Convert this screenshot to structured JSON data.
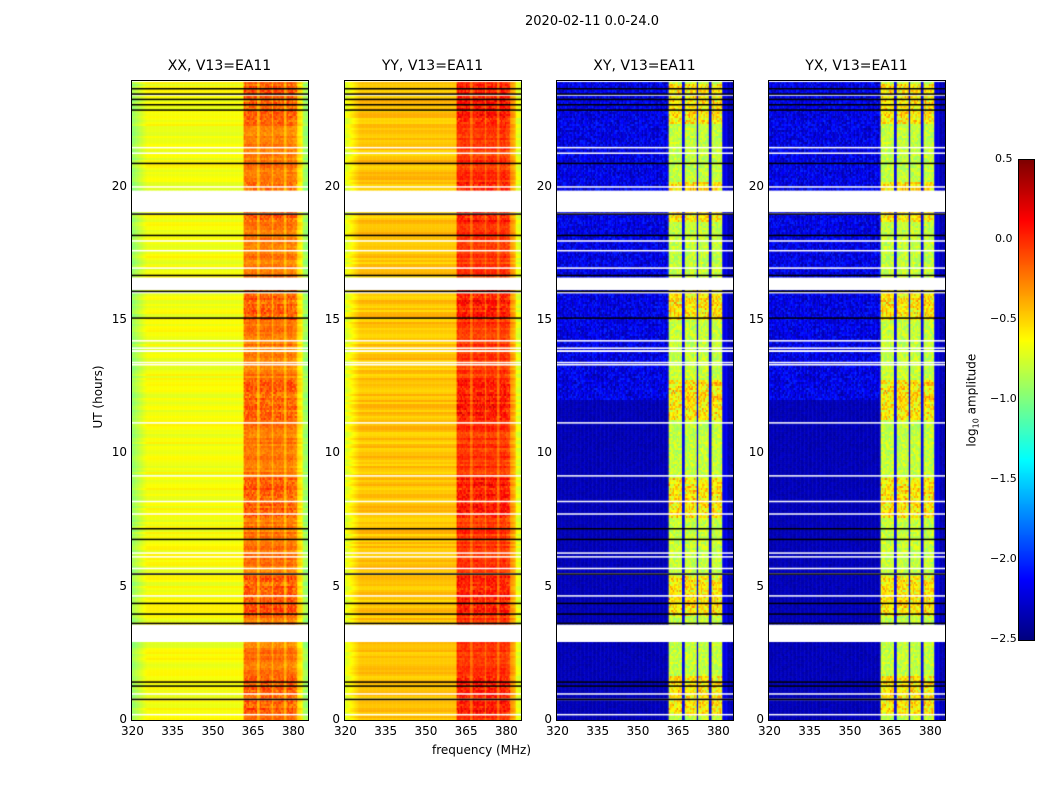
{
  "chart_data": {
    "type": "heatmap",
    "title": "2020-02-11 0.0-24.0",
    "xlabel": "frequency (MHz)",
    "ylabel": "UT (hours)",
    "xlim": [
      320,
      386
    ],
    "ylim": [
      0,
      24
    ],
    "xticks": [
      "320",
      "335",
      "350",
      "365",
      "380"
    ],
    "yticks": [
      "0",
      "5",
      "10",
      "15",
      "20"
    ],
    "panels": [
      {
        "title": "XX, V13=EA11",
        "base_level": -0.65,
        "band_level": -0.1
      },
      {
        "title": "YY, V13=EA11",
        "base_level": -0.45,
        "band_level": 0.0
      },
      {
        "title": "XY, V13=EA11",
        "base_level": -2.4,
        "band_level": -0.8
      },
      {
        "title": "YX, V13=EA11",
        "base_level": -2.4,
        "band_level": -0.8
      }
    ],
    "rfi_bands_mhz": [
      [
        362,
        367
      ],
      [
        368,
        372.5
      ],
      [
        373,
        377
      ],
      [
        378,
        382
      ]
    ],
    "flagged_hours": [
      [
        2.9,
        3.6
      ],
      [
        16.15,
        16.55
      ],
      [
        19.05,
        19.9
      ]
    ],
    "colorbar": {
      "label": "log10 amplitude",
      "label_main": "log",
      "label_sub": "10",
      "label_rest": " amplitude",
      "range": [
        -2.5,
        0.5
      ],
      "ticks": [
        "0.5",
        "0.0",
        "−0.5",
        "−1.0",
        "−1.5",
        "−2.0",
        "−2.5"
      ],
      "colormap": "jet"
    }
  }
}
